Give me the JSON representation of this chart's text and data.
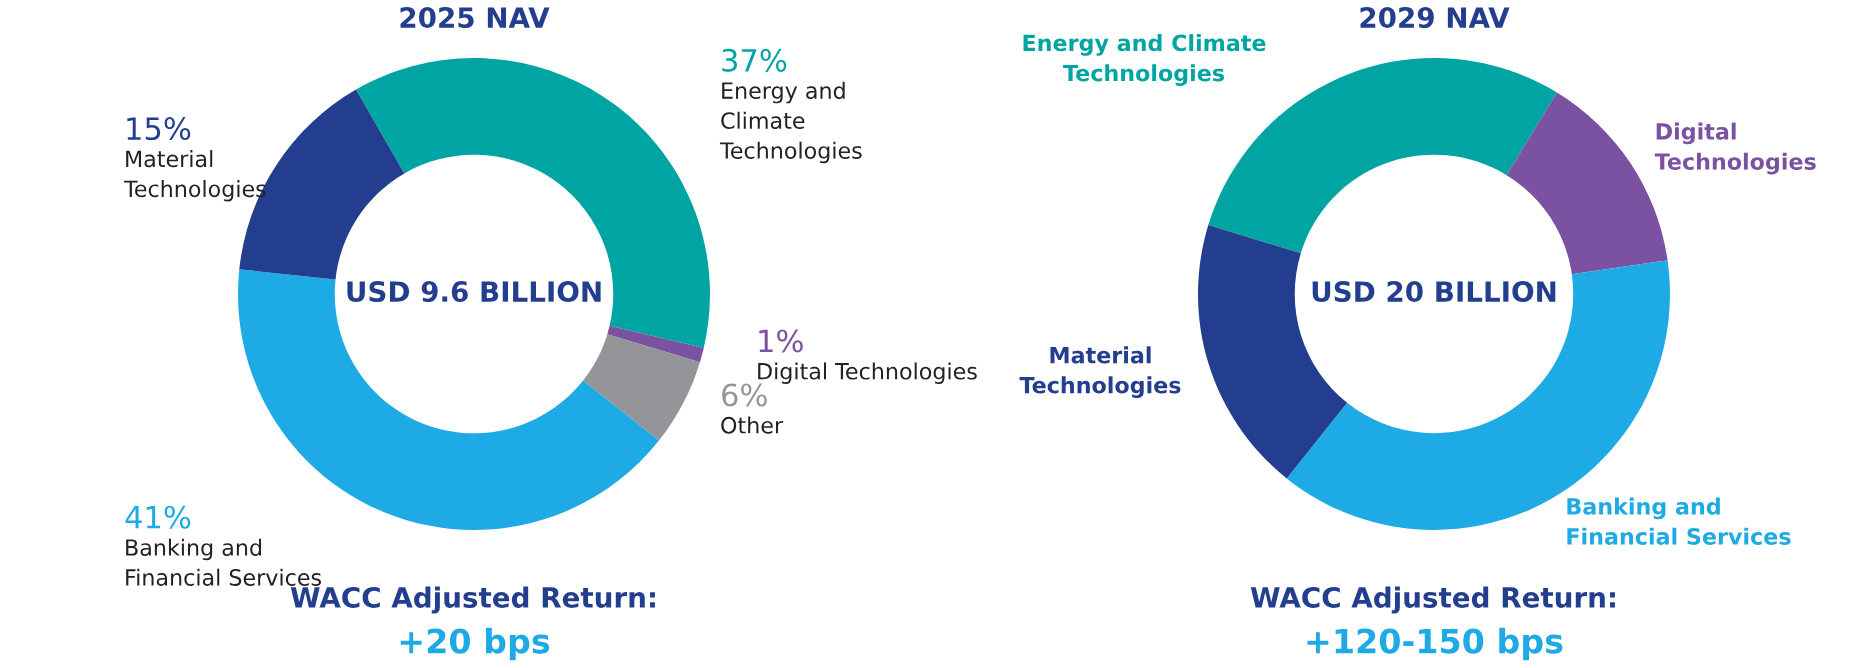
{
  "chart_data": [
    {
      "type": "donut",
      "title": "2025 NAV",
      "categories": [
        "Energy and\nClimate\nTechnologies",
        "Digital Technologies",
        "Other",
        "Banking and\nFinancial Services",
        "Material\nTechnologies"
      ],
      "values": [
        37,
        1,
        6,
        41,
        15
      ],
      "colors": [
        "#00a5a3",
        "#7b52a1",
        "#939598",
        "#1eaae4",
        "#243e8f"
      ],
      "value_labels": [
        "37%",
        "1%",
        "6%",
        "41%",
        "15%"
      ],
      "annotations": [
        "USD 9.6 BILLION",
        "WACC Adjusted Return:",
        "+20 bps"
      ]
    },
    {
      "type": "donut",
      "title": "2029 NAV",
      "categories": [
        "Energy and Climate\nTechnologies",
        "Digital\nTechnologies",
        "Banking and\nFinancial Services",
        "Material\nTechnologies"
      ],
      "values": [
        29,
        14,
        38,
        19
      ],
      "colors": [
        "#00a5a3",
        "#7b52a1",
        "#1eaae4",
        "#243e8f"
      ],
      "annotations": [
        "USD 20 BILLION",
        "WACC Adjusted Return:",
        "+120-150 bps"
      ]
    }
  ]
}
